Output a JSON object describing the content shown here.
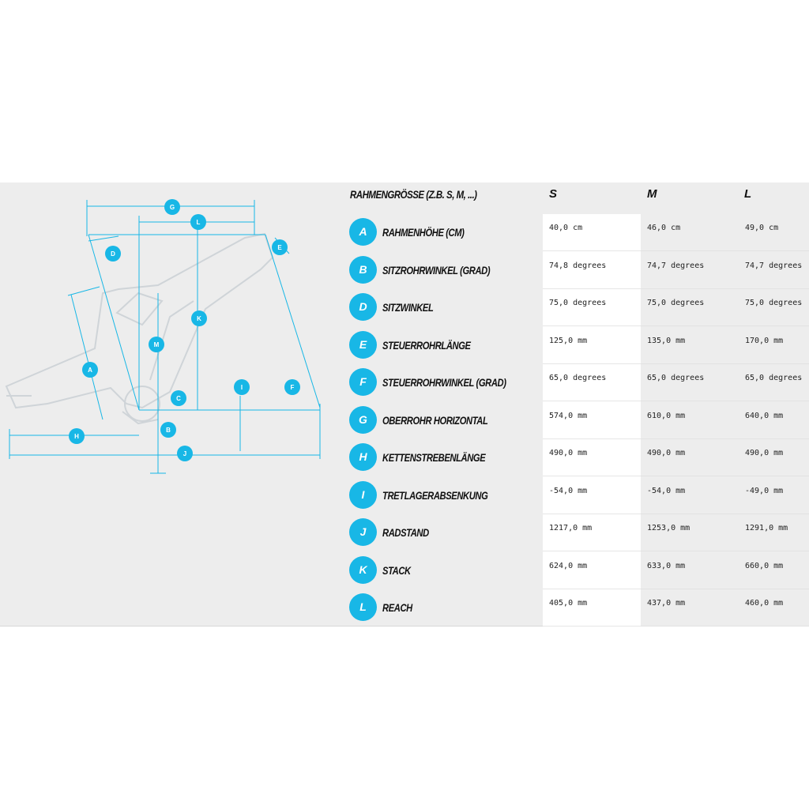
{
  "table": {
    "header_label": "RAHMENGRÖSSE (Z.B. S, M, ...)",
    "sizes": [
      "S",
      "M",
      "L"
    ],
    "rows": [
      {
        "key": "A",
        "name": "RAHMENHÖHE (CM)",
        "s": "40,0 cm",
        "m": "46,0 cm",
        "l": "49,0 cm"
      },
      {
        "key": "B",
        "name": "SITZROHRWINKEL (GRAD)",
        "s": "74,8 degrees",
        "m": "74,7 degrees",
        "l": "74,7 degrees"
      },
      {
        "key": "D",
        "name": "SITZWINKEL",
        "s": "75,0 degrees",
        "m": "75,0 degrees",
        "l": "75,0 degrees"
      },
      {
        "key": "E",
        "name": "STEUERROHRLÄNGE",
        "s": "125,0 mm",
        "m": "135,0 mm",
        "l": "170,0 mm"
      },
      {
        "key": "F",
        "name": "STEUERROHRWINKEL (GRAD)",
        "s": "65,0 degrees",
        "m": "65,0 degrees",
        "l": "65,0 degrees"
      },
      {
        "key": "G",
        "name": "OBERROHR HORIZONTAL",
        "s": "574,0 mm",
        "m": "610,0 mm",
        "l": "640,0 mm"
      },
      {
        "key": "H",
        "name": "KETTENSTREBENLÄNGE",
        "s": "490,0 mm",
        "m": "490,0 mm",
        "l": "490,0 mm"
      },
      {
        "key": "I",
        "name": "TRETLAGERABSENKUNG",
        "s": "-54,0 mm",
        "m": "-54,0 mm",
        "l": "-49,0 mm"
      },
      {
        "key": "J",
        "name": "RADSTAND",
        "s": "1217,0 mm",
        "m": "1253,0 mm",
        "l": "1291,0 mm"
      },
      {
        "key": "K",
        "name": "STACK",
        "s": "624,0 mm",
        "m": "633,0 mm",
        "l": "660,0 mm"
      },
      {
        "key": "L",
        "name": "REACH",
        "s": "405,0 mm",
        "m": "437,0 mm",
        "l": "460,0 mm"
      }
    ]
  },
  "diagram": {
    "labels": [
      "G",
      "L",
      "D",
      "E",
      "K",
      "M",
      "A",
      "I",
      "F",
      "C",
      "B",
      "H",
      "J"
    ]
  },
  "colors": {
    "accent": "#18b7e6",
    "frame_line": "#cfd4d8",
    "panel_bg": "#ededed"
  }
}
